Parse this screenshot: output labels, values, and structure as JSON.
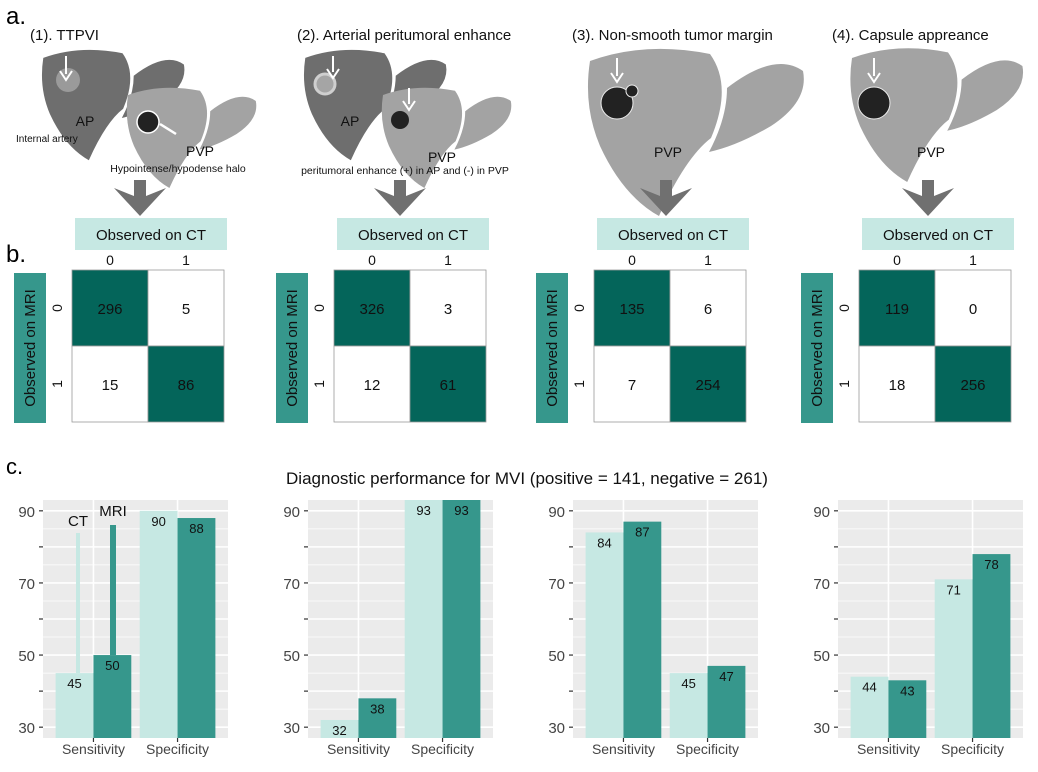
{
  "section_labels": {
    "a": "a.",
    "b": "b.",
    "c": "c."
  },
  "colors": {
    "ct": "#c6e8e3",
    "mri": "#36978c",
    "matrix_dark": "#04655a",
    "header_bg": "#c6e8e3",
    "mri_label_bg": "#36978c",
    "liver_ap": "#6e6e6e",
    "liver_pvp": "#a3a3a3",
    "plot_bg": "#ebebeb"
  },
  "panels": [
    {
      "title": "(1). TTPVI",
      "labels": {
        "ap": "AP",
        "pvp": "PVP",
        "note1": "Internal artery",
        "note2": "Hypointense/hypodense halo"
      },
      "matrix": {
        "col_header": "Observed on CT",
        "row_header": "Observed on MRI",
        "col_ticks": [
          "0",
          "1"
        ],
        "row_ticks": [
          "0",
          "1"
        ],
        "cells": [
          [
            "296",
            "5"
          ],
          [
            "15",
            "86"
          ]
        ]
      }
    },
    {
      "title": "(2). Arterial peritumoral enhance",
      "labels": {
        "ap": "AP",
        "pvp": "PVP",
        "note2": "peritumoral enhance (+) in AP and  (-) in PVP"
      },
      "matrix": {
        "col_header": "Observed on CT",
        "row_header": "Observed on MRI",
        "col_ticks": [
          "0",
          "1"
        ],
        "row_ticks": [
          "0",
          "1"
        ],
        "cells": [
          [
            "326",
            "3"
          ],
          [
            "12",
            "61"
          ]
        ]
      }
    },
    {
      "title": "(3). Non-smooth tumor margin",
      "labels": {
        "pvp": "PVP"
      },
      "matrix": {
        "col_header": "Observed on CT",
        "row_header": "Observed on MRI",
        "col_ticks": [
          "0",
          "1"
        ],
        "row_ticks": [
          "0",
          "1"
        ],
        "cells": [
          [
            "135",
            "6"
          ],
          [
            "7",
            "254"
          ]
        ]
      }
    },
    {
      "title": "(4). Capsule appreance",
      "labels": {
        "pvp": "PVP"
      },
      "matrix": {
        "col_header": "Observed on CT",
        "row_header": "Observed on MRI",
        "col_ticks": [
          "0",
          "1"
        ],
        "row_ticks": [
          "0",
          "1"
        ],
        "cells": [
          [
            "119",
            "0"
          ],
          [
            "18",
            "256"
          ]
        ]
      }
    }
  ],
  "chart_data": {
    "title": "Diagnostic performance for MVI (positive = 141, negative = 261)",
    "charts": [
      {
        "type": "bar",
        "categories": [
          "Sensitivity",
          "Specificity"
        ],
        "series": [
          {
            "name": "CT",
            "values": [
              45,
              90
            ]
          },
          {
            "name": "MRI",
            "values": [
              50,
              88
            ]
          }
        ],
        "ylim": [
          27,
          93
        ],
        "yticks": [
          "30",
          "50",
          "70",
          "90"
        ],
        "grid": true,
        "legend": "inside-top-left"
      },
      {
        "type": "bar",
        "categories": [
          "Sensitivity",
          "Specificity"
        ],
        "series": [
          {
            "values": [
              32,
              93
            ]
          },
          {
            "values": [
              38,
              93
            ]
          }
        ],
        "ylim": [
          27,
          93
        ],
        "yticks": [
          "30",
          "50",
          "70",
          "90"
        ],
        "grid": true
      },
      {
        "type": "bar",
        "categories": [
          "Sensitivity",
          "Specificity"
        ],
        "series": [
          {
            "values": [
              84,
              45
            ]
          },
          {
            "values": [
              87,
              47
            ]
          }
        ],
        "ylim": [
          27,
          93
        ],
        "yticks": [
          "30",
          "50",
          "70",
          "90"
        ],
        "grid": true
      },
      {
        "type": "bar",
        "categories": [
          "Sensitivity",
          "Specificity"
        ],
        "series": [
          {
            "values": [
              44,
              71
            ]
          },
          {
            "values": [
              43,
              78
            ]
          }
        ],
        "ylim": [
          27,
          93
        ],
        "yticks": [
          "30",
          "50",
          "70",
          "90"
        ],
        "grid": true
      }
    ]
  }
}
